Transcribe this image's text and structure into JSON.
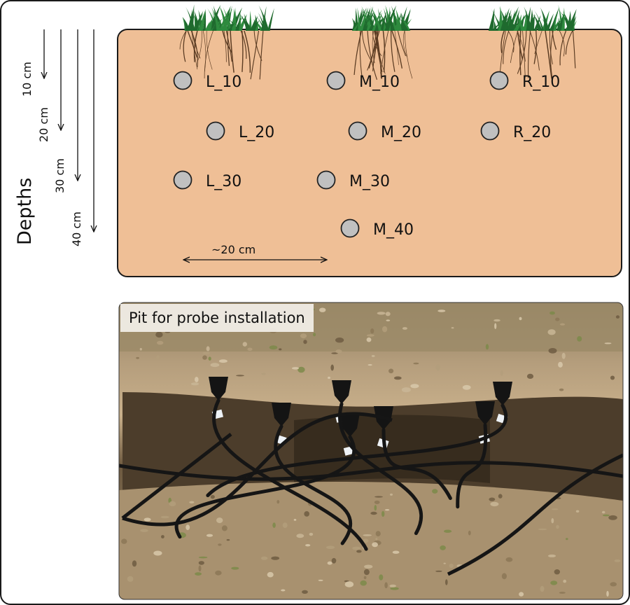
{
  "depth_axis": {
    "title": "Depths",
    "depths": [
      "10 cm",
      "20 cm",
      "30 cm",
      "40 cm"
    ]
  },
  "spacing_label": "~20 cm",
  "sensors": [
    {
      "id": "L_10"
    },
    {
      "id": "M_10"
    },
    {
      "id": "R_10"
    },
    {
      "id": "L_20"
    },
    {
      "id": "M_20"
    },
    {
      "id": "R_20"
    },
    {
      "id": "L_30"
    },
    {
      "id": "M_30"
    },
    {
      "id": "M_40"
    }
  ],
  "photo": {
    "caption": "Pit for probe installation"
  },
  "colors": {
    "soil": "#efbf96",
    "soil_border": "#1a1a1a",
    "sensor_fill": "#c0c0c0",
    "grass": "#1f6a2e",
    "roots": "#5a3b22"
  }
}
